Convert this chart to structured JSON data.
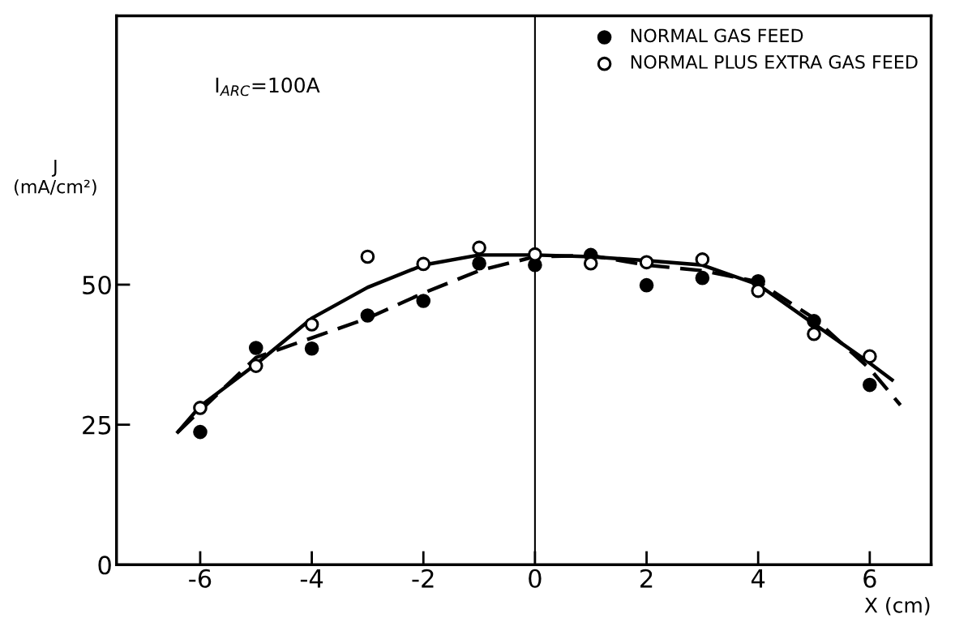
{
  "chart_data": {
    "type": "scatter",
    "xlabel": "X (cm)",
    "ylabel": "J\n(mA/cm²)",
    "annotations": [
      "I$_{ARC}$=100A"
    ],
    "xlim": [
      -7.5,
      7.1
    ],
    "ylim": [
      0,
      98
    ],
    "xticks": [
      -6,
      -4,
      -2,
      0,
      2,
      4,
      6
    ],
    "yticks": [
      0,
      25,
      50
    ],
    "grid": false,
    "legend": "top right",
    "marker": "circle",
    "ref_lines": [
      {
        "axis": "x",
        "value": 0,
        "color": "#000000",
        "line_style": "solid"
      }
    ],
    "series": [
      {
        "name": "NORMAL GAS FEED",
        "color": "#000000",
        "x": [
          -6,
          -5,
          -4,
          -3,
          -2,
          -1,
          0,
          1,
          2,
          3,
          4,
          5,
          6
        ],
        "values": [
          23.7,
          38.7,
          38.6,
          44.5,
          47.1,
          53.8,
          53.5,
          55.3,
          49.9,
          51.2,
          50.6,
          43.5,
          32.1
        ]
      },
      {
        "name": "NORMAL PLUS EXTRA GAS FEED",
        "color": "#ffffff",
        "x": [
          -6,
          -5,
          -4,
          -3,
          -2,
          -1,
          0,
          1,
          2,
          3,
          4,
          5,
          6
        ],
        "values": [
          28.0,
          35.5,
          42.9,
          55.0,
          53.7,
          56.6,
          55.4,
          53.8,
          54.0,
          54.5,
          48.9,
          41.2,
          37.2
        ]
      },
      {
        "type": "line",
        "color": "#000000",
        "marker": "none",
        "line_style": "dashed",
        "x": [
          -6.4,
          -5,
          -4,
          -3,
          -2,
          -1,
          0,
          1,
          2,
          3,
          4,
          5,
          6,
          6.55
        ],
        "values": [
          23.7,
          37,
          40.5,
          44,
          48.5,
          52.5,
          55,
          55.2,
          53.5,
          52.5,
          50.5,
          44,
          35,
          28.5
        ]
      },
      {
        "type": "line",
        "color": "#000000",
        "marker": "none",
        "line_style": "solid",
        "x": [
          -6.4,
          -6,
          -5,
          -4,
          -3,
          -2,
          -1,
          0,
          1,
          2,
          3,
          4,
          5,
          6,
          6.4
        ],
        "values": [
          23.7,
          28.3,
          35.8,
          44,
          49.5,
          53.5,
          55.3,
          55.3,
          55,
          54.3,
          53.5,
          50,
          43,
          36,
          33
        ]
      }
    ]
  }
}
